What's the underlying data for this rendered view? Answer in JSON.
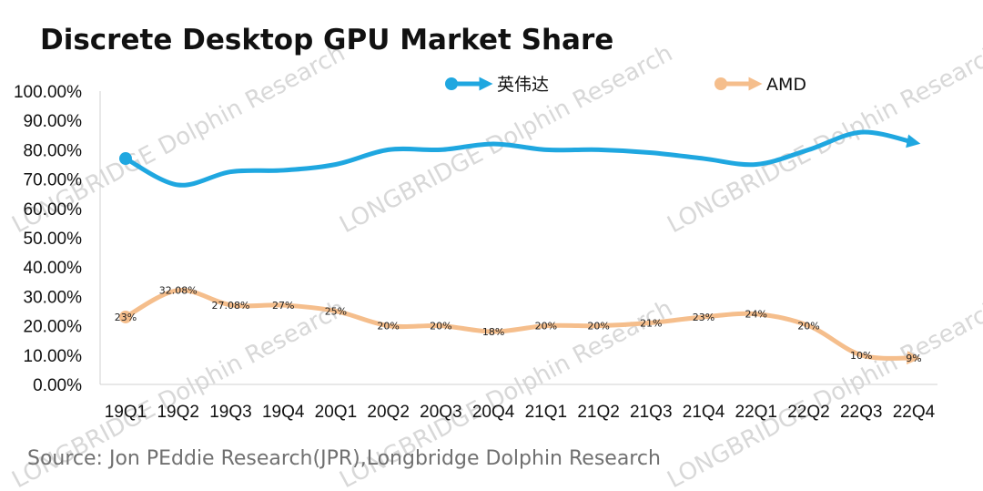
{
  "chart_data": {
    "type": "line",
    "title": "Discrete Desktop GPU Market Share",
    "source": "Source: Jon PEddie Research(JPR),Longbridge Dolphin Research",
    "watermark": "LONGBRIDGE Dolphin Research",
    "categories": [
      "19Q1",
      "19Q2",
      "19Q3",
      "19Q4",
      "20Q1",
      "20Q2",
      "20Q3",
      "20Q4",
      "21Q1",
      "21Q2",
      "21Q3",
      "21Q4",
      "22Q1",
      "22Q2",
      "22Q3",
      "22Q4"
    ],
    "ylim": [
      0,
      100
    ],
    "yticks": [
      "0.00%",
      "10.00%",
      "20.00%",
      "30.00%",
      "40.00%",
      "50.00%",
      "60.00%",
      "70.00%",
      "80.00%",
      "90.00%",
      "100.00%"
    ],
    "legend_position": "top",
    "series": [
      {
        "name": "英伟达",
        "color": "#1fa7e0",
        "values": [
          77,
          68,
          72.5,
          73,
          75,
          80,
          80,
          82,
          80,
          80,
          79,
          77,
          75,
          80,
          86,
          82.5
        ],
        "labels": []
      },
      {
        "name": "AMD",
        "color": "#f5be8c",
        "values": [
          23,
          32.08,
          27.08,
          27,
          25,
          20,
          20,
          18,
          20,
          20,
          21,
          23,
          24,
          20,
          10,
          9
        ],
        "labels": [
          "23%",
          "32.08%",
          "27.08%",
          "27%",
          "25%",
          "20%",
          "20%",
          "18%",
          "20%",
          "20%",
          "21%",
          "23%",
          "24%",
          "20%",
          "10%",
          "9%"
        ]
      }
    ]
  }
}
